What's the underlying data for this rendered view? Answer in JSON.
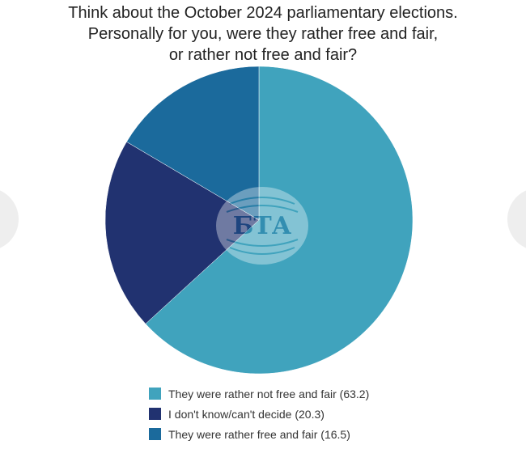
{
  "title": {
    "lines": [
      "Think about the October 2024 parliamentary elections.",
      "Personally for you, were they rather free and fair,",
      "or rather not free and fair?"
    ]
  },
  "watermark": {
    "text": "БТА"
  },
  "colors": {
    "not_free_fair": "#40a3bd",
    "dont_know": "#213270",
    "free_fair": "#1b6a9c"
  },
  "legend": [
    {
      "label": "They were rather not free and fair (63.2)",
      "color": "#40a3bd"
    },
    {
      "label": "I don't know/can't decide (20.3)",
      "color": "#213270"
    },
    {
      "label": "They were rather free and fair (16.5)",
      "color": "#1b6a9c"
    }
  ],
  "chart_data": {
    "type": "pie",
    "title": "Think about the October 2024 parliamentary elections. Personally for you, were they rather free and fair, or rather not free and fair?",
    "categories": [
      "They were rather not free and fair",
      "I don't know/can't decide",
      "They were rather free and fair"
    ],
    "values": [
      63.2,
      20.3,
      16.5
    ],
    "colors": [
      "#40a3bd",
      "#213270",
      "#1b6a9c"
    ],
    "start_angle": "12 o'clock, clockwise",
    "legend_position": "bottom"
  }
}
